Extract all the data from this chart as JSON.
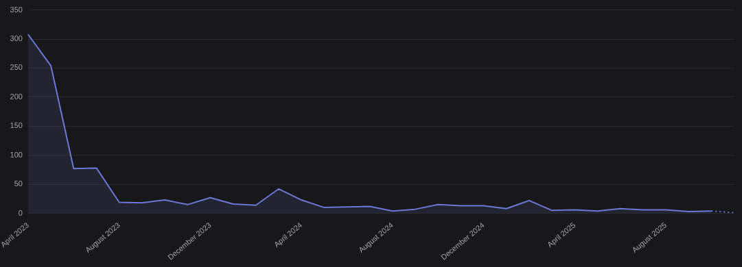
{
  "chart_data": {
    "type": "area",
    "categories": [
      "April 2023",
      null,
      null,
      null,
      "August 2023",
      null,
      null,
      null,
      "December 2023",
      null,
      null,
      null,
      "April 2024",
      null,
      null,
      null,
      "August 2024",
      null,
      null,
      null,
      "December 2024",
      null,
      null,
      null,
      "April 2025",
      null,
      null,
      null,
      "August 2025",
      null,
      null,
      null
    ],
    "series": [
      {
        "color": "#6b78d6",
        "values": [
          308,
          254,
          77,
          78,
          19,
          18,
          23,
          15,
          27,
          16,
          14,
          42,
          23,
          10,
          11,
          12,
          4,
          7,
          15,
          13,
          13,
          8,
          22,
          5,
          6,
          4,
          8,
          6,
          6,
          3,
          4,
          null
        ]
      },
      {
        "type": "line",
        "line_style": "dotted",
        "color": "#6b78d6",
        "values": [
          null,
          null,
          null,
          null,
          null,
          null,
          null,
          null,
          null,
          null,
          null,
          null,
          null,
          null,
          null,
          null,
          null,
          null,
          null,
          null,
          null,
          null,
          null,
          null,
          null,
          null,
          null,
          null,
          null,
          null,
          4,
          1
        ]
      }
    ],
    "ylim": [
      0,
      350
    ],
    "yticks": [
      0,
      50,
      100,
      150,
      200,
      250,
      300,
      350
    ],
    "grid": "y",
    "marker": "none"
  }
}
